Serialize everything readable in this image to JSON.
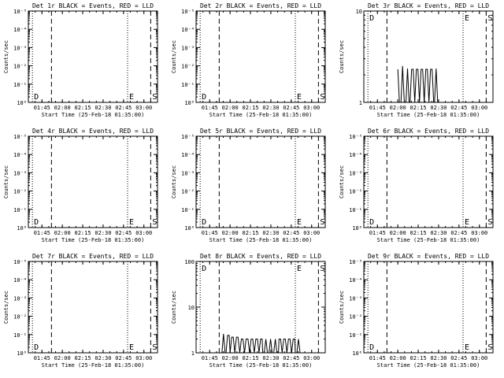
{
  "ylabel": "Counts/sec",
  "xlabel": "Start Time (25-Feb-18 01:35:00)",
  "x_tick_labels": [
    "01:45",
    "02:00",
    "02:15",
    "02:30",
    "02:45",
    "03:00"
  ],
  "colors": {
    "background": "#ffffff",
    "ink": "#000000"
  },
  "chart_data": [
    {
      "type": "line",
      "title": "Det 1r BLACK = Events, RED = LLD",
      "y_scale": "log",
      "y_tick_labels": [
        "10⁰",
        "10⁻¹",
        "10⁻²",
        "10⁻³",
        "10⁻⁴",
        "10⁻⁵"
      ],
      "markers": [
        {
          "label": "D",
          "time": "01:38",
          "line": "dotted"
        },
        {
          "label": "",
          "time": "01:52",
          "line": "dashed"
        },
        {
          "label": "E",
          "time": "02:48",
          "line": "dotted"
        },
        {
          "label": "S",
          "time": "03:05",
          "line": "dashed"
        }
      ],
      "series": []
    },
    {
      "type": "line",
      "title": "Det 2r BLACK = Events, RED = LLD",
      "y_scale": "log",
      "y_tick_labels": [
        "10⁰",
        "10⁻¹",
        "10⁻²",
        "10⁻³",
        "10⁻⁴",
        "10⁻⁵"
      ],
      "markers": [
        {
          "label": "D",
          "time": "01:38",
          "line": "dotted"
        },
        {
          "label": "",
          "time": "01:52",
          "line": "dashed"
        },
        {
          "label": "E",
          "time": "02:48",
          "line": "dotted"
        },
        {
          "label": "S",
          "time": "03:05",
          "line": "dashed"
        }
      ],
      "series": []
    },
    {
      "type": "line",
      "title": "Det 3r BLACK = Events, RED = LLD",
      "y_scale": "log",
      "y_tick_labels": [
        "1",
        "10"
      ],
      "markers": [
        {
          "label": "D",
          "time": "01:38",
          "line": "dotted"
        },
        {
          "label": "",
          "time": "01:52",
          "line": "dashed"
        },
        {
          "label": "E",
          "time": "02:48",
          "line": "dotted"
        },
        {
          "label": "S",
          "time": "03:05",
          "line": "dashed"
        }
      ],
      "series": [
        {
          "values": [
            [
              2.0,
              2.3
            ],
            [
              2.02,
              2.5
            ],
            [
              2.06,
              2.3
            ],
            [
              2.1,
              2.35
            ],
            [
              2.15,
              2.3
            ],
            [
              2.45,
              2.35
            ]
          ]
        }
      ]
    },
    {
      "type": "line",
      "title": "Det 4r BLACK = Events, RED = LLD",
      "y_scale": "log",
      "y_tick_labels": [
        "10⁰",
        "10⁻¹",
        "10⁻²",
        "10⁻³",
        "10⁻⁴",
        "10⁻⁵"
      ],
      "markers": [
        {
          "label": "D",
          "time": "01:38",
          "line": "dotted"
        },
        {
          "label": "",
          "time": "01:52",
          "line": "dashed"
        },
        {
          "label": "E",
          "time": "02:48",
          "line": "dotted"
        },
        {
          "label": "S",
          "time": "03:05",
          "line": "dashed"
        }
      ],
      "series": []
    },
    {
      "type": "line",
      "title": "Det 5r BLACK = Events, RED = LLD",
      "y_scale": "log",
      "y_tick_labels": [
        "10⁰",
        "10⁻¹",
        "10⁻²",
        "10⁻³",
        "10⁻⁴",
        "10⁻⁵"
      ],
      "markers": [
        {
          "label": "D",
          "time": "01:38",
          "line": "dotted"
        },
        {
          "label": "",
          "time": "01:52",
          "line": "dashed"
        },
        {
          "label": "E",
          "time": "02:48",
          "line": "dotted"
        },
        {
          "label": "S",
          "time": "03:05",
          "line": "dashed"
        }
      ],
      "series": []
    },
    {
      "type": "line",
      "title": "Det 6r BLACK = Events, RED = LLD",
      "y_scale": "log",
      "y_tick_labels": [
        "10⁰",
        "10⁻¹",
        "10⁻²",
        "10⁻³",
        "10⁻⁴",
        "10⁻⁵"
      ],
      "markers": [
        {
          "label": "D",
          "time": "01:38",
          "line": "dotted"
        },
        {
          "label": "",
          "time": "01:52",
          "line": "dashed"
        },
        {
          "label": "E",
          "time": "02:48",
          "line": "dotted"
        },
        {
          "label": "S",
          "time": "03:05",
          "line": "dashed"
        }
      ],
      "series": []
    },
    {
      "type": "line",
      "title": "Det 7r BLACK = Events, RED = LLD",
      "y_scale": "log",
      "y_tick_labels": [
        "10⁰",
        "10⁻¹",
        "10⁻²",
        "10⁻³",
        "10⁻⁴",
        "10⁻⁵"
      ],
      "markers": [
        {
          "label": "D",
          "time": "01:38",
          "line": "dotted"
        },
        {
          "label": "",
          "time": "01:52",
          "line": "dashed"
        },
        {
          "label": "E",
          "time": "02:48",
          "line": "dotted"
        },
        {
          "label": "S",
          "time": "03:05",
          "line": "dashed"
        }
      ],
      "series": []
    },
    {
      "type": "line",
      "title": "Det 8r BLACK = Events, RED = LLD",
      "y_scale": "log",
      "y_tick_labels": [
        "1",
        "10",
        "100"
      ],
      "markers": [
        {
          "label": "D",
          "time": "01:38",
          "line": "dotted"
        },
        {
          "label": "",
          "time": "01:52",
          "line": "dashed"
        },
        {
          "label": "E",
          "time": "02:48",
          "line": "dotted"
        },
        {
          "label": "S",
          "time": "03:05",
          "line": "dashed"
        }
      ],
      "series": [
        {
          "values": [
            [
              1.9,
              2.6
            ],
            [
              1.95,
              2.4
            ],
            [
              2.0,
              2.2
            ],
            [
              2.1,
              2.0
            ],
            [
              2.2,
              2.0
            ],
            [
              2.4,
              2.0
            ],
            [
              2.6,
              2.0
            ],
            [
              2.8,
              2.0
            ]
          ]
        }
      ]
    },
    {
      "type": "line",
      "title": "Det 9r BLACK = Events, RED = LLD",
      "y_scale": "log",
      "y_tick_labels": [
        "10⁰",
        "10⁻¹",
        "10⁻²",
        "10⁻³",
        "10⁻⁴",
        "10⁻⁵"
      ],
      "markers": [
        {
          "label": "D",
          "time": "01:38",
          "line": "dotted"
        },
        {
          "label": "",
          "time": "01:52",
          "line": "dashed"
        },
        {
          "label": "E",
          "time": "02:48",
          "line": "dotted"
        },
        {
          "label": "S",
          "time": "03:05",
          "line": "dashed"
        }
      ],
      "series": []
    }
  ]
}
